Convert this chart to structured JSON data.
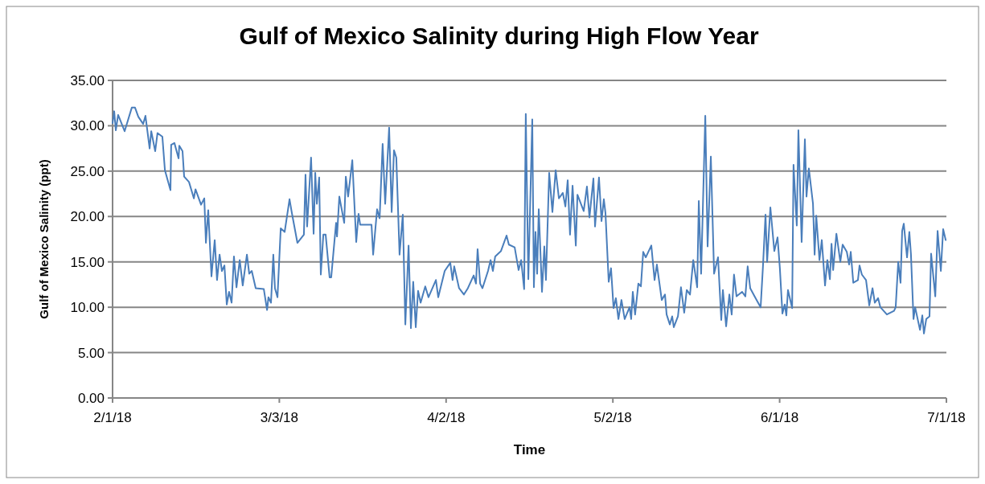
{
  "chart_data": {
    "type": "line",
    "title": "Gulf of Mexico Salinity during High Flow Year",
    "xlabel": "Time",
    "ylabel": "Gulf of Mexico Salinity (ppt)",
    "xlim": [
      "2018-02-01",
      "2018-07-01"
    ],
    "xticks": [
      {
        "value": "2018-02-01",
        "label": "2/1/18"
      },
      {
        "value": "2018-03-03",
        "label": "3/3/18"
      },
      {
        "value": "2018-04-02",
        "label": "4/2/18"
      },
      {
        "value": "2018-05-02",
        "label": "5/2/18"
      },
      {
        "value": "2018-06-01",
        "label": "6/1/18"
      },
      {
        "value": "2018-07-01",
        "label": "7/1/18"
      }
    ],
    "ylim": [
      0,
      35
    ],
    "yticks": [
      {
        "value": 0,
        "label": "0.00"
      },
      {
        "value": 5,
        "label": "5.00"
      },
      {
        "value": 10,
        "label": "10.00"
      },
      {
        "value": 15,
        "label": "15.00"
      },
      {
        "value": 20,
        "label": "20.00"
      },
      {
        "value": 25,
        "label": "25.00"
      },
      {
        "value": 30,
        "label": "30.00"
      },
      {
        "value": 35,
        "label": "35.00"
      }
    ],
    "grid": "y",
    "marker": "none",
    "line_style": "solid",
    "series": [
      {
        "color": "#4a7ebb",
        "x": [
          "2018-02-01T00:00",
          "2018-02-01T07:00",
          "2018-02-01T14:00",
          "2018-02-02T00:00",
          "2018-02-03T04:00",
          "2018-02-04T11:00",
          "2018-02-05T01:00",
          "2018-02-05T15:00",
          "2018-02-06T12:00",
          "2018-02-06T22:00",
          "2018-02-07T16:00",
          "2018-02-07T23:00",
          "2018-02-08T16:00",
          "2018-02-09T02:00",
          "2018-02-09T23:00",
          "2018-02-10T10:00",
          "2018-02-11T10:00",
          "2018-02-11T13:00",
          "2018-02-12T03:00",
          "2018-02-12T21:00",
          "2018-02-13T00:00",
          "2018-02-13T14:00",
          "2018-02-13T21:00",
          "2018-02-14T18:00",
          "2018-02-15T15:00",
          "2018-02-15T22:00",
          "2018-02-16T22:00",
          "2018-02-17T12:00",
          "2018-02-17T19:00",
          "2018-02-18T05:00",
          "2018-02-18T19:00",
          "2018-02-19T09:00",
          "2018-02-19T19:00",
          "2018-02-20T06:00",
          "2018-02-20T16:00",
          "2018-02-21T03:00",
          "2018-02-21T13:00",
          "2018-02-21T23:00",
          "2018-02-22T10:00",
          "2018-02-22T20:00",
          "2018-02-23T07:00",
          "2018-02-23T21:00",
          "2018-02-24T10:00",
          "2018-02-25T04:00",
          "2018-02-25T14:00",
          "2018-02-26T01:00",
          "2018-02-26T18:00",
          "2018-02-28T05:00",
          "2018-02-28T19:00",
          "2018-03-01T01:00",
          "2018-03-01T12:00",
          "2018-03-01T22:00",
          "2018-03-02T05:00",
          "2018-03-02T16:00",
          "2018-03-03T06:00",
          "2018-03-03T23:00",
          "2018-03-04T20:00",
          "2018-03-05T06:00",
          "2018-03-06T06:00",
          "2018-03-07T10:00",
          "2018-03-07T17:00",
          "2018-03-08T00:00",
          "2018-03-08T17:00",
          "2018-03-09T04:00",
          "2018-03-09T11:00",
          "2018-03-09T18:00",
          "2018-03-10T04:00",
          "2018-03-10T11:00",
          "2018-03-10T22:00",
          "2018-03-11T08:00",
          "2018-03-12T01:00",
          "2018-03-12T08:00",
          "2018-03-13T05:00",
          "2018-03-13T09:00",
          "2018-03-13T19:00",
          "2018-03-14T16:00",
          "2018-03-14T23:00",
          "2018-03-15T09:00",
          "2018-03-16T03:00",
          "2018-03-16T20:00",
          "2018-03-17T06:00",
          "2018-03-17T13:00",
          "2018-03-19T14:00",
          "2018-03-19T21:00",
          "2018-03-20T14:00",
          "2018-03-21T01:00",
          "2018-03-21T14:00",
          "2018-03-22T01:00",
          "2018-03-22T18:00",
          "2018-03-23T05:00",
          "2018-03-23T15:00",
          "2018-03-24T01:00",
          "2018-03-24T15:00",
          "2018-03-25T05:00",
          "2018-03-25T16:00",
          "2018-03-26T06:00",
          "2018-03-26T16:00",
          "2018-03-27T02:00",
          "2018-03-27T13:00",
          "2018-03-27T23:00",
          "2018-03-28T10:00",
          "2018-03-29T06:00",
          "2018-03-29T20:00",
          "2018-03-31T04:00",
          "2018-03-31T14:00",
          "2018-04-01T18:00",
          "2018-04-02T18:00",
          "2018-04-03T04:00",
          "2018-04-03T11:00",
          "2018-04-04T08:00",
          "2018-04-05T05:00",
          "2018-04-05T22:00",
          "2018-04-06T23:00",
          "2018-04-07T09:00",
          "2018-04-07T16:00",
          "2018-04-08T03:00",
          "2018-04-08T13:00",
          "2018-04-09T13:00",
          "2018-04-10T00:00",
          "2018-04-10T10:00",
          "2018-04-10T20:00",
          "2018-04-11T21:00",
          "2018-04-12T21:00",
          "2018-04-13T07:00",
          "2018-04-14T08:00",
          "2018-04-15T01:00",
          "2018-04-15T12:00",
          "2018-04-16T01:00",
          "2018-04-16T08:00",
          "2018-04-16T19:00",
          "2018-04-17T12:00",
          "2018-04-17T19:00",
          "2018-04-18T02:00",
          "2018-04-18T09:00",
          "2018-04-18T16:00",
          "2018-04-19T06:00",
          "2018-04-19T16:00",
          "2018-04-19T23:00",
          "2018-04-20T13:00",
          "2018-04-21T03:00",
          "2018-04-21T17:00",
          "2018-04-22T07:00",
          "2018-04-23T00:00",
          "2018-04-23T11:00",
          "2018-04-23T21:00",
          "2018-04-24T07:00",
          "2018-04-24T18:00",
          "2018-04-25T08:00",
          "2018-04-25T15:00",
          "2018-04-26T18:00",
          "2018-04-27T08:00",
          "2018-04-27T19:00",
          "2018-04-28T12:00",
          "2018-04-28T19:00",
          "2018-04-29T12:00",
          "2018-04-29T23:00",
          "2018-04-30T09:00",
          "2018-04-30T16:00",
          "2018-05-01T06:00",
          "2018-05-01T16:00",
          "2018-05-02T03:00",
          "2018-05-02T13:00",
          "2018-05-03T00:00",
          "2018-05-03T13:00",
          "2018-05-04T03:00",
          "2018-05-05T00:00",
          "2018-05-05T07:00",
          "2018-05-05T14:00",
          "2018-05-06T00:00",
          "2018-05-06T14:00",
          "2018-05-07T01:00",
          "2018-05-07T11:00",
          "2018-05-07T22:00",
          "2018-05-08T22:00",
          "2018-05-09T12:00",
          "2018-05-09T22:00",
          "2018-05-10T19:00",
          "2018-05-11T09:00",
          "2018-05-11T16:00",
          "2018-05-12T06:00",
          "2018-05-12T16:00",
          "2018-05-12T23:00",
          "2018-05-13T17:00",
          "2018-05-14T06:00",
          "2018-05-14T20:00",
          "2018-05-15T07:00",
          "2018-05-15T21:00",
          "2018-05-16T11:00",
          "2018-05-17T04:00",
          "2018-05-17T11:00",
          "2018-05-17T21:00",
          "2018-05-18T15:00",
          "2018-05-19T01:00",
          "2018-05-19T15:00",
          "2018-05-20T05:00",
          "2018-05-20T22:00",
          "2018-05-21T12:00",
          "2018-05-21T19:00",
          "2018-05-22T09:00",
          "2018-05-22T23:00",
          "2018-05-23T09:00",
          "2018-05-23T19:00",
          "2018-05-24T06:00",
          "2018-05-25T06:00",
          "2018-05-25T20:00",
          "2018-05-26T06:00",
          "2018-05-26T17:00",
          "2018-05-27T14:00",
          "2018-05-28T14:00",
          "2018-05-29T00:00",
          "2018-05-29T11:00",
          "2018-05-29T18:00",
          "2018-05-30T08:00",
          "2018-05-31T01:00",
          "2018-05-31T15:00",
          "2018-06-01T01:00",
          "2018-06-01T12:00",
          "2018-06-01T22:00",
          "2018-06-02T05:00",
          "2018-06-02T12:00",
          "2018-06-03T06:00",
          "2018-06-03T12:00",
          "2018-06-04T02:00",
          "2018-06-04T09:00",
          "2018-06-04T23:00",
          "2018-06-05T13:00",
          "2018-06-05T20:00",
          "2018-06-06T06:00",
          "2018-06-07T00:00",
          "2018-06-07T07:00",
          "2018-06-07T14:00",
          "2018-06-08T04:00",
          "2018-06-08T14:00",
          "2018-06-09T04:00",
          "2018-06-09T14:00",
          "2018-06-10T01:00",
          "2018-06-10T08:00",
          "2018-06-10T15:00",
          "2018-06-11T05:00",
          "2018-06-11T22:00",
          "2018-06-12T08:00",
          "2018-06-13T02:00",
          "2018-06-13T12:00",
          "2018-06-13T19:00",
          "2018-06-14T06:00",
          "2018-06-15T02:00",
          "2018-06-15T09:00",
          "2018-06-15T19:00",
          "2018-06-16T13:00",
          "2018-06-17T03:00",
          "2018-06-17T17:00",
          "2018-06-18T03:00",
          "2018-06-18T17:00",
          "2018-06-19T03:00",
          "2018-06-20T07:00",
          "2018-06-21T14:00",
          "2018-06-21T21:00",
          "2018-06-22T08:00",
          "2018-06-22T18:00",
          "2018-06-23T01:00",
          "2018-06-23T08:00",
          "2018-06-23T22:00",
          "2018-06-24T08:00",
          "2018-06-24T15:00",
          "2018-06-25T02:00",
          "2018-06-25T09:00",
          "2018-06-26T06:00",
          "2018-06-26T16:00",
          "2018-06-26T23:00",
          "2018-06-27T09:00",
          "2018-06-27T23:00",
          "2018-06-28T06:00",
          "2018-06-29T00:00",
          "2018-06-29T10:00",
          "2018-06-30T00:00",
          "2018-06-30T10:00",
          "2018-06-30T21:00"
        ],
        "values": [
          30.3,
          31.6,
          29.5,
          31.2,
          29.4,
          32.0,
          32.0,
          31.0,
          30.2,
          31.1,
          27.5,
          29.4,
          27.2,
          29.2,
          28.8,
          25.1,
          22.9,
          27.9,
          28.1,
          26.4,
          27.8,
          27.2,
          24.4,
          23.8,
          22.0,
          23.0,
          21.3,
          22.0,
          17.1,
          20.7,
          13.4,
          17.4,
          13.0,
          15.8,
          14.0,
          14.6,
          10.3,
          11.7,
          10.5,
          15.6,
          12.2,
          15.2,
          12.4,
          15.8,
          13.7,
          14.0,
          12.1,
          12.0,
          9.7,
          11.1,
          10.5,
          15.8,
          12.1,
          11.1,
          18.7,
          18.3,
          21.9,
          20.4,
          17.1,
          18.0,
          24.6,
          18.9,
          26.5,
          18.1,
          24.8,
          21.4,
          24.3,
          13.6,
          18.0,
          18.0,
          13.3,
          13.3,
          19.3,
          17.8,
          22.2,
          19.3,
          24.4,
          22.2,
          26.2,
          17.2,
          20.3,
          19.1,
          19.1,
          15.8,
          20.8,
          19.8,
          28.0,
          21.4,
          29.8,
          20.5,
          27.3,
          26.5,
          15.8,
          20.2,
          8.1,
          16.8,
          7.7,
          12.8,
          7.8,
          11.8,
          10.5,
          12.3,
          11.1,
          13.0,
          11.1,
          14.0,
          14.9,
          13.0,
          14.5,
          12.1,
          11.4,
          12.1,
          13.5,
          12.6,
          16.4,
          12.6,
          12.1,
          14.0,
          15.2,
          14.0,
          15.6,
          16.2,
          17.9,
          16.9,
          16.6,
          14.1,
          15.2,
          12.0,
          31.3,
          13.1,
          30.7,
          12.2,
          18.3,
          13.7,
          20.8,
          11.7,
          16.7,
          13.0,
          24.8,
          20.5,
          25.1,
          22.0,
          22.6,
          21.1,
          24.0,
          18.0,
          23.4,
          16.8,
          22.4,
          20.6,
          23.3,
          19.9,
          24.2,
          18.9,
          24.3,
          19.5,
          21.9,
          20.4,
          12.8,
          14.3,
          9.9,
          11.0,
          8.7,
          10.8,
          8.7,
          10.0,
          8.7,
          11.7,
          9.2,
          12.6,
          12.3,
          16.1,
          15.5,
          16.8,
          13.0,
          14.7,
          10.8,
          11.4,
          9.2,
          8.1,
          9.0,
          7.8,
          9.0,
          12.2,
          9.4,
          11.9,
          11.4,
          15.2,
          12.2,
          21.7,
          13.7,
          31.1,
          16.7,
          26.6,
          13.7,
          15.5,
          8.6,
          11.9,
          7.9,
          11.4,
          9.2,
          13.6,
          11.2,
          11.7,
          11.2,
          14.5,
          12.1,
          11.1,
          10.0,
          14.5,
          20.2,
          15.0,
          21.0,
          16.2,
          17.7,
          14.3,
          9.3,
          10.3,
          9.1,
          11.9,
          9.9,
          25.7,
          19.0,
          29.5,
          17.2,
          28.5,
          22.2,
          25.3,
          21.4,
          15.8,
          20.1,
          15.2,
          17.4,
          12.4,
          15.2,
          13.1,
          17.0,
          14.1,
          18.1,
          15.0,
          16.9,
          16.1,
          14.7,
          16.1,
          12.7,
          13.0,
          14.6,
          13.6,
          13.0,
          10.2,
          12.1,
          10.5,
          11.0,
          10.0,
          9.2,
          9.6,
          10.0,
          15.0,
          12.7,
          18.4,
          19.2,
          15.5,
          18.3,
          15.8,
          8.7,
          10.0,
          7.5,
          9.1,
          7.1,
          8.7,
          9.0,
          15.9,
          11.2,
          18.4,
          14.0,
          18.6,
          17.4
        ]
      }
    ]
  }
}
